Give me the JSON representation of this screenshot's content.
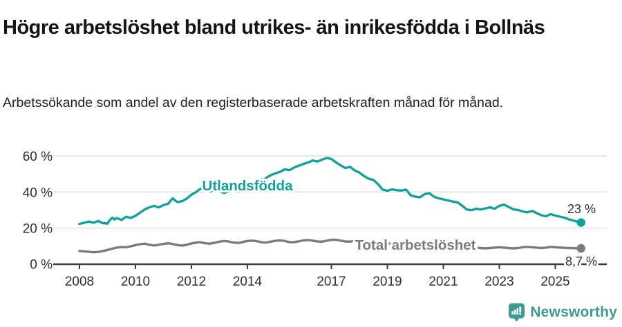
{
  "title": "Högre arbetslöshet bland utrikes- än inrikesfödda i Bollnäs",
  "subtitle": "Arbetssökande som andel av den registerbaserade arbetskraften månad för månad.",
  "branding": {
    "name": "Newsworthy",
    "icon": "newsworthy-speech-bubble-chart-icon",
    "color": "#3f9a94"
  },
  "chart_data": {
    "type": "line",
    "title": "Högre arbetslöshet bland utrikes- än inrikesfödda i Bollnäs",
    "subtitle": "Arbetssökande som andel av den registerbaserade arbetskraften månad för månad.",
    "xlabel": "",
    "ylabel": "",
    "unit": "%",
    "grid": "horizontal",
    "legend_position": "inline-labels",
    "ylim": [
      0,
      63
    ],
    "xlim": [
      2007.1,
      2026.7
    ],
    "yticks": [
      "0 %",
      "20 %",
      "40 %",
      "60 %"
    ],
    "ytick_values": [
      0,
      20,
      40,
      60
    ],
    "xticks": [
      "2008",
      "2010",
      "2012",
      "2014",
      "2017",
      "2019",
      "2021",
      "2023",
      "2025"
    ],
    "xtick_values": [
      2008,
      2010,
      2012,
      2014,
      2017,
      2019,
      2021,
      2023,
      2025
    ],
    "colors": {
      "utlandsfodda": "#12a19a",
      "total": "#7b7b7b",
      "gridline": "#e3e3e3",
      "axis": "#3a3a3a",
      "axis_text": "#303030",
      "value_label": "#333333"
    },
    "series": [
      {
        "name": "Utlandsfödda",
        "color": "#12a19a",
        "end_label": "23 %",
        "end_value": 23,
        "points": [
          [
            2008.0,
            22.3
          ],
          [
            2008.17,
            22.9
          ],
          [
            2008.33,
            23.6
          ],
          [
            2008.5,
            22.9
          ],
          [
            2008.67,
            23.9
          ],
          [
            2008.83,
            22.7
          ],
          [
            2009.0,
            22.5
          ],
          [
            2009.08,
            24.3
          ],
          [
            2009.17,
            25.7
          ],
          [
            2009.25,
            24.7
          ],
          [
            2009.33,
            25.5
          ],
          [
            2009.5,
            24.5
          ],
          [
            2009.67,
            26.3
          ],
          [
            2009.83,
            25.6
          ],
          [
            2010.0,
            26.8
          ],
          [
            2010.17,
            28.6
          ],
          [
            2010.33,
            30.3
          ],
          [
            2010.5,
            31.5
          ],
          [
            2010.67,
            32.3
          ],
          [
            2010.83,
            31.4
          ],
          [
            2011.0,
            32.7
          ],
          [
            2011.17,
            33.5
          ],
          [
            2011.33,
            36.5
          ],
          [
            2011.42,
            35.3
          ],
          [
            2011.5,
            34.4
          ],
          [
            2011.67,
            34.9
          ],
          [
            2011.83,
            36.3
          ],
          [
            2012.0,
            38.5
          ],
          [
            2012.17,
            40.0
          ],
          [
            2012.33,
            41.9
          ],
          [
            2012.5,
            41.0
          ],
          [
            2012.67,
            40.3
          ],
          [
            2012.83,
            41.5
          ],
          [
            2013.0,
            40.4
          ],
          [
            2013.17,
            39.5
          ],
          [
            2013.33,
            40.3
          ],
          [
            2013.5,
            40.9
          ],
          [
            2013.67,
            40.2
          ],
          [
            2013.83,
            41.0
          ],
          [
            2014.0,
            43.0
          ],
          [
            2014.17,
            45.3
          ],
          [
            2014.33,
            46.3
          ],
          [
            2014.5,
            47.0
          ],
          [
            2014.58,
            46.4
          ],
          [
            2014.67,
            47.8
          ],
          [
            2014.83,
            49.3
          ],
          [
            2015.0,
            50.4
          ],
          [
            2015.17,
            51.2
          ],
          [
            2015.33,
            52.6
          ],
          [
            2015.5,
            52.1
          ],
          [
            2015.67,
            53.6
          ],
          [
            2015.83,
            54.6
          ],
          [
            2016.0,
            55.6
          ],
          [
            2016.17,
            56.4
          ],
          [
            2016.33,
            57.5
          ],
          [
            2016.5,
            56.9
          ],
          [
            2016.67,
            58.0
          ],
          [
            2016.83,
            58.9
          ],
          [
            2017.0,
            58.3
          ],
          [
            2017.17,
            56.4
          ],
          [
            2017.33,
            54.8
          ],
          [
            2017.5,
            53.3
          ],
          [
            2017.67,
            54.0
          ],
          [
            2017.83,
            52.0
          ],
          [
            2018.0,
            50.8
          ],
          [
            2018.17,
            48.8
          ],
          [
            2018.33,
            47.4
          ],
          [
            2018.5,
            46.7
          ],
          [
            2018.67,
            44.3
          ],
          [
            2018.83,
            41.3
          ],
          [
            2019.0,
            40.7
          ],
          [
            2019.17,
            41.5
          ],
          [
            2019.33,
            41.0
          ],
          [
            2019.5,
            40.8
          ],
          [
            2019.67,
            41.3
          ],
          [
            2019.83,
            38.2
          ],
          [
            2020.0,
            37.4
          ],
          [
            2020.17,
            37.1
          ],
          [
            2020.33,
            38.8
          ],
          [
            2020.5,
            39.3
          ],
          [
            2020.67,
            37.3
          ],
          [
            2020.83,
            36.5
          ],
          [
            2021.0,
            35.9
          ],
          [
            2021.17,
            35.3
          ],
          [
            2021.33,
            34.7
          ],
          [
            2021.5,
            34.3
          ],
          [
            2021.67,
            32.4
          ],
          [
            2021.83,
            30.3
          ],
          [
            2022.0,
            29.9
          ],
          [
            2022.17,
            30.7
          ],
          [
            2022.33,
            30.3
          ],
          [
            2022.5,
            30.9
          ],
          [
            2022.67,
            31.5
          ],
          [
            2022.83,
            30.7
          ],
          [
            2023.0,
            32.3
          ],
          [
            2023.17,
            33.0
          ],
          [
            2023.33,
            31.7
          ],
          [
            2023.5,
            30.4
          ],
          [
            2023.67,
            30.0
          ],
          [
            2023.83,
            29.2
          ],
          [
            2024.0,
            28.7
          ],
          [
            2024.17,
            29.5
          ],
          [
            2024.33,
            28.3
          ],
          [
            2024.5,
            27.1
          ],
          [
            2024.67,
            26.5
          ],
          [
            2024.83,
            27.7
          ],
          [
            2025.0,
            26.9
          ],
          [
            2025.17,
            26.3
          ],
          [
            2025.33,
            25.7
          ],
          [
            2025.5,
            24.7
          ],
          [
            2025.67,
            24.1
          ],
          [
            2025.83,
            23.2
          ],
          [
            2025.92,
            23.0
          ]
        ]
      },
      {
        "name": "Total arbetslöshet",
        "color": "#7b7b7b",
        "end_label": "8,7 %",
        "end_value": 8.7,
        "points": [
          [
            2008.0,
            7.2
          ],
          [
            2008.17,
            7.1
          ],
          [
            2008.33,
            6.8
          ],
          [
            2008.5,
            6.5
          ],
          [
            2008.67,
            6.7
          ],
          [
            2008.83,
            7.2
          ],
          [
            2009.0,
            7.8
          ],
          [
            2009.17,
            8.5
          ],
          [
            2009.33,
            9.1
          ],
          [
            2009.5,
            9.4
          ],
          [
            2009.67,
            9.3
          ],
          [
            2009.83,
            9.8
          ],
          [
            2010.0,
            10.5
          ],
          [
            2010.17,
            11.0
          ],
          [
            2010.33,
            11.3
          ],
          [
            2010.5,
            10.7
          ],
          [
            2010.67,
            10.3
          ],
          [
            2010.83,
            10.7
          ],
          [
            2011.0,
            11.2
          ],
          [
            2011.17,
            11.5
          ],
          [
            2011.33,
            11.1
          ],
          [
            2011.5,
            10.5
          ],
          [
            2011.67,
            10.2
          ],
          [
            2011.83,
            10.7
          ],
          [
            2012.0,
            11.4
          ],
          [
            2012.17,
            11.9
          ],
          [
            2012.33,
            12.1
          ],
          [
            2012.5,
            11.5
          ],
          [
            2012.67,
            11.3
          ],
          [
            2012.83,
            11.8
          ],
          [
            2013.0,
            12.4
          ],
          [
            2013.17,
            12.8
          ],
          [
            2013.33,
            12.5
          ],
          [
            2013.5,
            11.9
          ],
          [
            2013.67,
            11.7
          ],
          [
            2013.83,
            12.2
          ],
          [
            2014.0,
            12.8
          ],
          [
            2014.17,
            13.0
          ],
          [
            2014.33,
            12.7
          ],
          [
            2014.5,
            12.1
          ],
          [
            2014.67,
            11.9
          ],
          [
            2014.83,
            12.4
          ],
          [
            2015.0,
            12.9
          ],
          [
            2015.17,
            13.1
          ],
          [
            2015.33,
            12.8
          ],
          [
            2015.5,
            12.2
          ],
          [
            2015.67,
            12.1
          ],
          [
            2015.83,
            12.6
          ],
          [
            2016.0,
            13.1
          ],
          [
            2016.17,
            13.3
          ],
          [
            2016.33,
            13.0
          ],
          [
            2016.5,
            12.5
          ],
          [
            2016.67,
            12.4
          ],
          [
            2016.83,
            12.9
          ],
          [
            2017.0,
            13.4
          ],
          [
            2017.17,
            13.5
          ],
          [
            2017.33,
            13.0
          ],
          [
            2017.5,
            12.5
          ],
          [
            2017.67,
            12.4
          ],
          [
            2017.83,
            12.9
          ],
          [
            2018.0,
            13.1
          ],
          [
            2018.17,
            12.8
          ],
          [
            2018.33,
            12.3
          ],
          [
            2018.5,
            11.8
          ],
          [
            2018.67,
            11.5
          ],
          [
            2018.83,
            11.7
          ],
          [
            2019.0,
            11.5
          ],
          [
            2019.17,
            11.2
          ],
          [
            2019.33,
            10.9
          ],
          [
            2019.5,
            10.6
          ],
          [
            2019.67,
            10.5
          ],
          [
            2019.83,
            10.9
          ],
          [
            2020.0,
            11.1
          ],
          [
            2020.17,
            11.5
          ],
          [
            2020.33,
            11.9
          ],
          [
            2020.5,
            11.6
          ],
          [
            2020.67,
            11.2
          ],
          [
            2020.83,
            10.9
          ],
          [
            2021.0,
            10.7
          ],
          [
            2021.17,
            10.3
          ],
          [
            2021.33,
            9.9
          ],
          [
            2021.5,
            9.5
          ],
          [
            2021.67,
            9.3
          ],
          [
            2021.83,
            9.5
          ],
          [
            2022.0,
            9.3
          ],
          [
            2022.17,
            9.1
          ],
          [
            2022.33,
            8.9
          ],
          [
            2022.5,
            8.7
          ],
          [
            2022.67,
            8.9
          ],
          [
            2022.83,
            9.1
          ],
          [
            2023.0,
            9.3
          ],
          [
            2023.17,
            9.1
          ],
          [
            2023.33,
            8.9
          ],
          [
            2023.5,
            8.7
          ],
          [
            2023.67,
            8.9
          ],
          [
            2023.83,
            9.3
          ],
          [
            2024.0,
            9.5
          ],
          [
            2024.17,
            9.3
          ],
          [
            2024.33,
            9.1
          ],
          [
            2024.5,
            8.9
          ],
          [
            2024.67,
            9.1
          ],
          [
            2024.83,
            9.5
          ],
          [
            2025.0,
            9.3
          ],
          [
            2025.17,
            9.1
          ],
          [
            2025.33,
            9.0
          ],
          [
            2025.5,
            8.9
          ],
          [
            2025.67,
            8.8
          ],
          [
            2025.83,
            8.7
          ],
          [
            2025.92,
            8.7
          ]
        ]
      }
    ]
  }
}
